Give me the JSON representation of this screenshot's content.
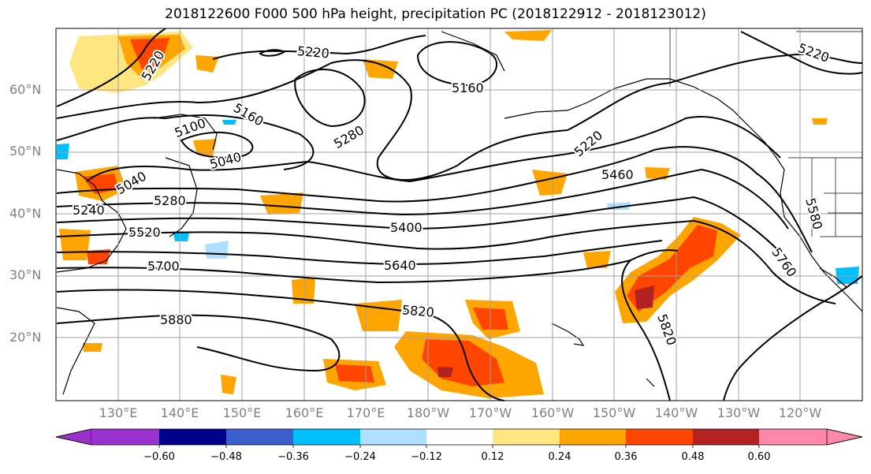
{
  "title": "2018122600 F000 500 hPa height, precipitation PC (2018122912 - 2018123012)",
  "map": {
    "lat_labels": [
      "60°N",
      "50°N",
      "40°N",
      "30°N",
      "20°N"
    ],
    "lon_labels": [
      "130°E",
      "140°E",
      "150°E",
      "160°E",
      "170°E",
      "180°W",
      "170°W",
      "160°W",
      "150°W",
      "140°W",
      "130°W",
      "120°W"
    ],
    "contour_labels": [
      "5220",
      "5220",
      "5160",
      "5220",
      "5100",
      "5160",
      "5280",
      "5220",
      "5040",
      "5040",
      "5460",
      "5280",
      "5240",
      "5580",
      "5520",
      "5400",
      "5700",
      "5640",
      "5760",
      "5820",
      "5880",
      "5820"
    ],
    "colors": {
      "land_outline": "#000000",
      "grid": "#a0a0a0",
      "height_contour": "#000000",
      "precip_positive": [
        "#ffe680",
        "#ffa500",
        "#ff4500",
        "#b22222",
        "#ff88aa"
      ],
      "precip_negative": [
        "#b0e0ff",
        "#00bfff",
        "#3a5fcd",
        "#00008b",
        "#9932cc"
      ]
    }
  },
  "colorbar": {
    "ticks": [
      "−0.60",
      "−0.48",
      "−0.36",
      "−0.24",
      "−0.12",
      "0.12",
      "0.24",
      "0.36",
      "0.48",
      "0.60"
    ],
    "bins": [
      "#9932cc",
      "#00008b",
      "#3a5fcd",
      "#00bfff",
      "#b0e0ff",
      "#ffffff",
      "#ffe680",
      "#ffa500",
      "#ff4500",
      "#b22222",
      "#ff88aa"
    ]
  }
}
